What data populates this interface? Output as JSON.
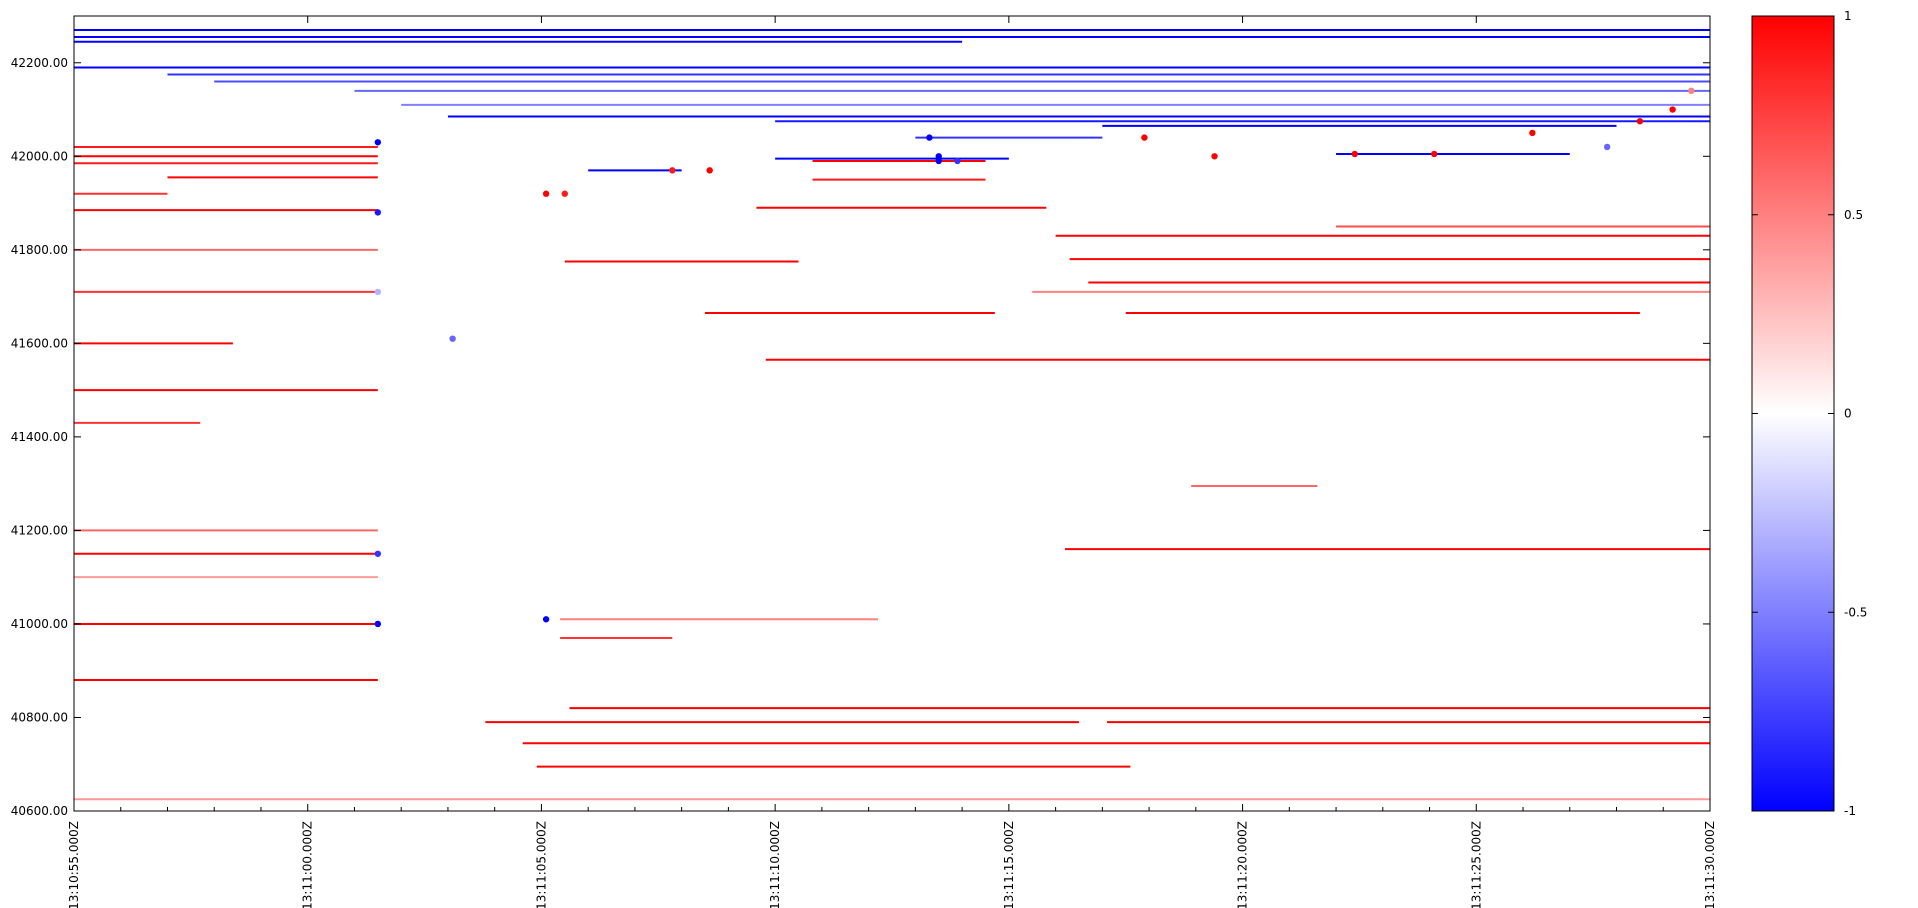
{
  "chart_data": {
    "type": "heatmap",
    "title": "",
    "xlabel": "",
    "ylabel": "",
    "x_ticks": [
      "13:10:55.000Z",
      "13:11:00.000Z",
      "13:11:05.000Z",
      "13:11:10.000Z",
      "13:11:15.000Z",
      "13:11:20.000Z",
      "13:11:25.000Z",
      "13:11:30.000Z"
    ],
    "x_tick_seconds": [
      0,
      5,
      10,
      15,
      20,
      25,
      30,
      35
    ],
    "x_range_seconds": [
      0,
      35
    ],
    "y_ticks": [
      "40600.00",
      "40800.00",
      "41000.00",
      "41200.00",
      "41400.00",
      "41600.00",
      "41800.00",
      "42000.00",
      "42200.00"
    ],
    "y_tick_values": [
      40600,
      40800,
      41000,
      41200,
      41400,
      41600,
      41800,
      42000,
      42200
    ],
    "ylim": [
      40600,
      42300
    ],
    "colorbar": {
      "ticks": [
        "1",
        "0.5",
        "0",
        "-0.5",
        "-1"
      ],
      "tick_values": [
        1,
        0.5,
        0,
        -0.5,
        -1
      ],
      "range": [
        -1,
        1
      ],
      "colors": {
        "max": "#ff0000",
        "mid": "#ffffff",
        "min": "#0000ff"
      }
    },
    "segments": [
      {
        "price": 42270,
        "start": 0,
        "end": 35,
        "value": -1
      },
      {
        "price": 42255,
        "start": 0,
        "end": 35,
        "value": -1
      },
      {
        "price": 42245,
        "start": 0,
        "end": 19,
        "value": -1
      },
      {
        "price": 42190,
        "start": 0,
        "end": 35,
        "value": -1
      },
      {
        "price": 42175,
        "start": 2,
        "end": 35,
        "value": -0.8
      },
      {
        "price": 42160,
        "start": 3,
        "end": 35,
        "value": -0.7
      },
      {
        "price": 42140,
        "start": 6,
        "end": 35,
        "value": -0.6
      },
      {
        "price": 42110,
        "start": 7,
        "end": 35,
        "value": -0.5
      },
      {
        "price": 42085,
        "start": 8,
        "end": 35,
        "value": -1
      },
      {
        "price": 42075,
        "start": 15,
        "end": 35,
        "value": -0.9
      },
      {
        "price": 42065,
        "start": 22,
        "end": 33,
        "value": -1
      },
      {
        "price": 42040,
        "start": 18,
        "end": 22,
        "value": -0.8
      },
      {
        "price": 42005,
        "start": 27,
        "end": 32,
        "value": -1
      },
      {
        "price": 41995,
        "start": 15,
        "end": 20,
        "value": -1
      },
      {
        "price": 41970,
        "start": 11,
        "end": 13,
        "value": -1
      },
      {
        "price": 42020,
        "start": 0,
        "end": 6.5,
        "value": 0.9
      },
      {
        "price": 42000,
        "start": 0,
        "end": 6.5,
        "value": 1
      },
      {
        "price": 41985,
        "start": 0,
        "end": 6.5,
        "value": 0.9
      },
      {
        "price": 41955,
        "start": 2,
        "end": 6.5,
        "value": 1
      },
      {
        "price": 41920,
        "start": 0,
        "end": 2,
        "value": 0.8
      },
      {
        "price": 41885,
        "start": 0,
        "end": 6.5,
        "value": 1
      },
      {
        "price": 41800,
        "start": 0,
        "end": 6.5,
        "value": 0.6
      },
      {
        "price": 41710,
        "start": 0,
        "end": 6.5,
        "value": 0.8
      },
      {
        "price": 41600,
        "start": 0,
        "end": 3.4,
        "value": 1
      },
      {
        "price": 41500,
        "start": 0,
        "end": 6.5,
        "value": 1
      },
      {
        "price": 41430,
        "start": 0,
        "end": 2.7,
        "value": 0.8
      },
      {
        "price": 41200,
        "start": 0,
        "end": 6.5,
        "value": 0.6
      },
      {
        "price": 41150,
        "start": 0,
        "end": 6.5,
        "value": 1
      },
      {
        "price": 41100,
        "start": 0,
        "end": 6.5,
        "value": 0.4
      },
      {
        "price": 41000,
        "start": 0,
        "end": 6.5,
        "value": 1
      },
      {
        "price": 40880,
        "start": 0,
        "end": 6.5,
        "value": 1
      },
      {
        "price": 41990,
        "start": 15.8,
        "end": 19.5,
        "value": 1
      },
      {
        "price": 41950,
        "start": 15.8,
        "end": 19.5,
        "value": 0.9
      },
      {
        "price": 41890,
        "start": 14.6,
        "end": 20.8,
        "value": 1
      },
      {
        "price": 41850,
        "start": 27,
        "end": 35,
        "value": 0.7
      },
      {
        "price": 41830,
        "start": 21,
        "end": 35,
        "value": 1
      },
      {
        "price": 41780,
        "start": 21.3,
        "end": 35,
        "value": 1
      },
      {
        "price": 41775,
        "start": 10.5,
        "end": 15.5,
        "value": 1
      },
      {
        "price": 41730,
        "start": 21.7,
        "end": 35,
        "value": 1
      },
      {
        "price": 41710,
        "start": 20.5,
        "end": 35,
        "value": 0.5
      },
      {
        "price": 41665,
        "start": 13.5,
        "end": 19.7,
        "value": 1
      },
      {
        "price": 41665,
        "start": 22.5,
        "end": 33.5,
        "value": 1
      },
      {
        "price": 41565,
        "start": 14.8,
        "end": 35,
        "value": 1
      },
      {
        "price": 41295,
        "start": 23.9,
        "end": 26.6,
        "value": 0.6
      },
      {
        "price": 41160,
        "start": 21.2,
        "end": 35,
        "value": 1
      },
      {
        "price": 41010,
        "start": 10.4,
        "end": 17.2,
        "value": 0.5
      },
      {
        "price": 40970,
        "start": 10.4,
        "end": 12.8,
        "value": 0.8
      },
      {
        "price": 40820,
        "start": 10.6,
        "end": 35,
        "value": 1
      },
      {
        "price": 40790,
        "start": 8.8,
        "end": 21.5,
        "value": 1
      },
      {
        "price": 40790,
        "start": 22.1,
        "end": 35,
        "value": 1
      },
      {
        "price": 40745,
        "start": 9.6,
        "end": 35,
        "value": 1
      },
      {
        "price": 40695,
        "start": 9.9,
        "end": 22.6,
        "value": 1
      },
      {
        "price": 40625,
        "start": 0,
        "end": 35,
        "value": 0.4
      }
    ],
    "points": [
      {
        "t": 6.5,
        "price": 42030,
        "value": -1
      },
      {
        "t": 6.5,
        "price": 41880,
        "value": -0.9
      },
      {
        "t": 6.5,
        "price": 41710,
        "value": -0.3
      },
      {
        "t": 6.5,
        "price": 41150,
        "value": -0.8
      },
      {
        "t": 6.5,
        "price": 41000,
        "value": -1
      },
      {
        "t": 8.1,
        "price": 41610,
        "value": -0.6
      },
      {
        "t": 10.1,
        "price": 41920,
        "value": 1
      },
      {
        "t": 10.5,
        "price": 41920,
        "value": 0.9
      },
      {
        "t": 10.1,
        "price": 41010,
        "value": -1
      },
      {
        "t": 12.8,
        "price": 41970,
        "value": 0.9
      },
      {
        "t": 13.6,
        "price": 41970,
        "value": 1
      },
      {
        "t": 18.5,
        "price": 42000,
        "value": -1
      },
      {
        "t": 18.5,
        "price": 41990,
        "value": -1
      },
      {
        "t": 18.9,
        "price": 41990,
        "value": -0.8
      },
      {
        "t": 18.3,
        "price": 42040,
        "value": -1
      },
      {
        "t": 22.9,
        "price": 42040,
        "value": 1
      },
      {
        "t": 24.4,
        "price": 42000,
        "value": 1
      },
      {
        "t": 27.4,
        "price": 42005,
        "value": 1
      },
      {
        "t": 29.1,
        "price": 42005,
        "value": 1
      },
      {
        "t": 31.2,
        "price": 42050,
        "value": 1
      },
      {
        "t": 33.5,
        "price": 42075,
        "value": 1
      },
      {
        "t": 34.2,
        "price": 42100,
        "value": 1
      },
      {
        "t": 34.6,
        "price": 42140,
        "value": 0.5
      },
      {
        "t": 32.8,
        "price": 42020,
        "value": -0.6
      }
    ]
  }
}
